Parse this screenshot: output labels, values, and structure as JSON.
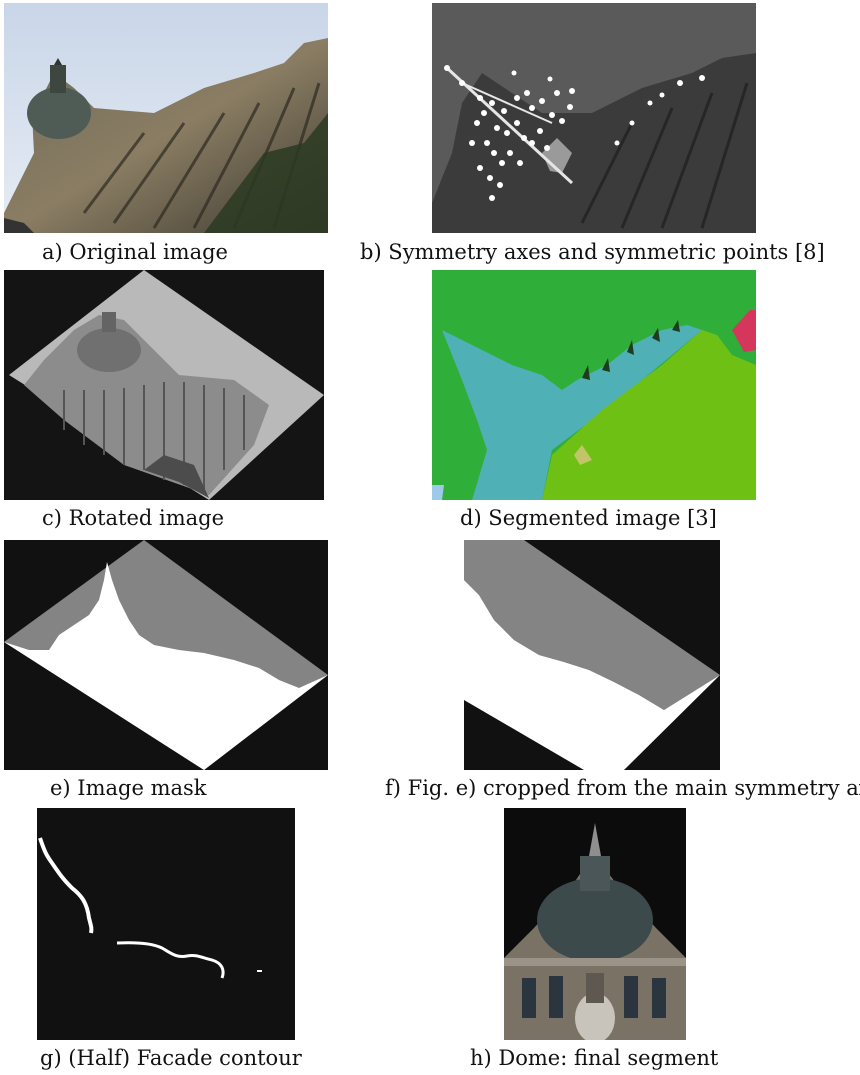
{
  "figure": {
    "panels": [
      {
        "id": "a",
        "caption": "a) Original image"
      },
      {
        "id": "b",
        "caption": "b) Symmetry axes and symmetric points [8]"
      },
      {
        "id": "c",
        "caption": "c) Rotated image"
      },
      {
        "id": "d",
        "caption": "d) Segmented image [3]"
      },
      {
        "id": "e",
        "caption": "e) Image mask"
      },
      {
        "id": "f",
        "caption": "f) Fig. e) cropped from the main symmetry axis"
      },
      {
        "id": "g",
        "caption": "g) (Half) Facade contour"
      },
      {
        "id": "h",
        "caption": "h) Dome: final segment"
      }
    ]
  }
}
